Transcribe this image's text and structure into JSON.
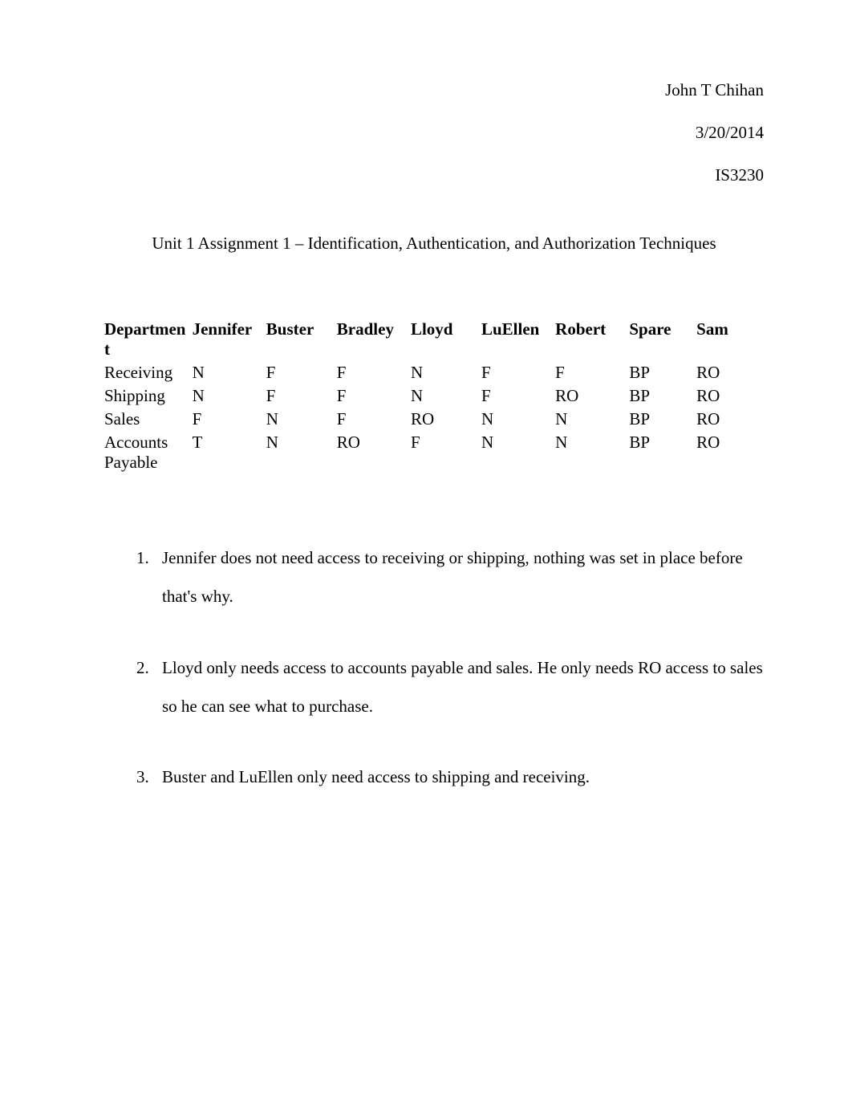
{
  "header": {
    "author": "John T Chihan",
    "date": "3/20/2014",
    "course": "IS3230"
  },
  "title": "Unit 1 Assignment 1 – Identification, Authentication, and Authorization Techniques",
  "table": {
    "columns": [
      "Departmen\nt",
      "Jennifer",
      "Buster",
      "Bradley",
      "Lloyd",
      "LuEllen",
      "Robert",
      "Spare",
      "Sam"
    ],
    "column_widths_pct": [
      13,
      11,
      10.5,
      11,
      10.5,
      11,
      11,
      10,
      10
    ],
    "rows": [
      [
        "Receiving",
        "N",
        "F",
        "F",
        "N",
        "F",
        "F",
        "BP",
        "RO"
      ],
      [
        "Shipping",
        "N",
        "F",
        "F",
        "N",
        "F",
        "RO",
        "BP",
        "RO"
      ],
      [
        "Sales",
        "F",
        "N",
        "F",
        "RO",
        "N",
        "N",
        "BP",
        "RO"
      ],
      [
        "Accounts Payable",
        "T",
        "N",
        "RO",
        "F",
        "N",
        "N",
        "BP",
        "RO"
      ]
    ]
  },
  "notes": [
    {
      "number": "1.",
      "text": "Jennifer does not need access to receiving or shipping, nothing was set in place before that's why."
    },
    {
      "number": "2.",
      "text": "Lloyd only needs access to accounts payable and sales. He only needs RO access to sales so he can see what to purchase."
    },
    {
      "number": "3.",
      "text": "Buster and LuEllen only need access to shipping and receiving."
    }
  ],
  "style": {
    "page_bg": "#ffffff",
    "text_color": "#000000",
    "font_family": "Times New Roman",
    "base_font_size_pt": 16,
    "line_height_notes": 2.3
  }
}
